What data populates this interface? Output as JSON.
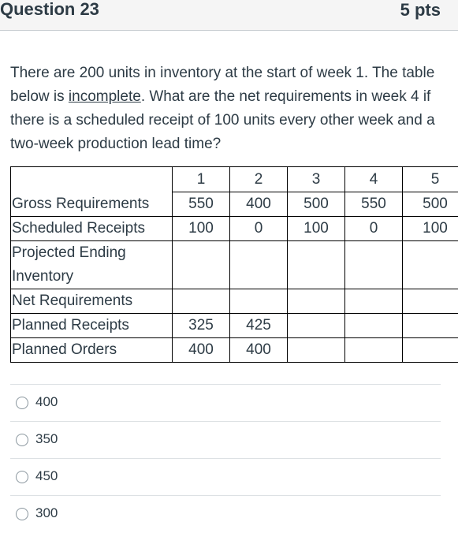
{
  "header": {
    "title": "Question 23",
    "points": "5 pts"
  },
  "question": {
    "text_before": "There are 200 units in inventory at the start of week 1.  The table below is ",
    "underlined": "incomplete",
    "text_after": ".  What are the net requirements in week 4 if there is a scheduled receipt of 100 units every other week and a two-week production lead time?"
  },
  "table": {
    "weeks": [
      "1",
      "2",
      "3",
      "4",
      "5"
    ],
    "rows": [
      {
        "label": "Gross Requirements",
        "values": [
          "550",
          "400",
          "500",
          "550",
          "500"
        ]
      },
      {
        "label": "Scheduled Receipts",
        "values": [
          "100",
          "0",
          "100",
          "0",
          "100"
        ]
      },
      {
        "label": "Projected Ending Inventory",
        "values": [
          "",
          "",
          "",
          "",
          ""
        ]
      },
      {
        "label": "Net Requirements",
        "values": [
          "",
          "",
          "",
          "",
          ""
        ]
      },
      {
        "label": "Planned Receipts",
        "values": [
          "325",
          "425",
          "",
          "",
          ""
        ]
      },
      {
        "label": "Planned Orders",
        "values": [
          "400",
          "400",
          "",
          "",
          ""
        ]
      }
    ]
  },
  "answers": [
    "400",
    "350",
    "450",
    "300"
  ]
}
